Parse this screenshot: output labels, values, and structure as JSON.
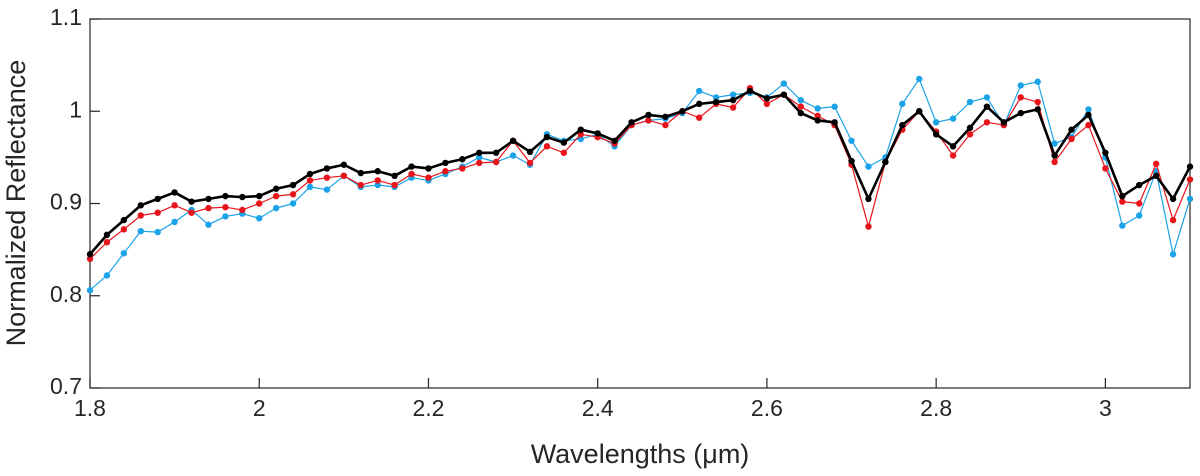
{
  "chart_data": {
    "type": "line",
    "x_label": "Wavelengths (μm)",
    "y_label": "Normalized Reflectance",
    "x": [
      1.8,
      1.82,
      1.84,
      1.86,
      1.88,
      1.9,
      1.92,
      1.94,
      1.96,
      1.98,
      2,
      2.02,
      2.04,
      2.06,
      2.08,
      2.1,
      2.12,
      2.14,
      2.16,
      2.18,
      2.2,
      2.22,
      2.24,
      2.26,
      2.28,
      2.3,
      2.32,
      2.34,
      2.36,
      2.38,
      2.4,
      2.42,
      2.44,
      2.46,
      2.48,
      2.5,
      2.52,
      2.54,
      2.56,
      2.58,
      2.6,
      2.62,
      2.64,
      2.66,
      2.68,
      2.7,
      2.72,
      2.74,
      2.76,
      2.78,
      2.8,
      2.82,
      2.84,
      2.86,
      2.88,
      2.9,
      2.92,
      2.94,
      2.96,
      2.98,
      3,
      3.02,
      3.04,
      3.06,
      3.08,
      3.1
    ],
    "series": [
      {
        "color": "#1aa3e8",
        "values": [
          0.806,
          0.822,
          0.846,
          0.87,
          0.869,
          0.88,
          0.893,
          0.877,
          0.886,
          0.889,
          0.884,
          0.895,
          0.9,
          0.918,
          0.915,
          0.93,
          0.918,
          0.92,
          0.918,
          0.928,
          0.925,
          0.932,
          0.94,
          0.95,
          0.945,
          0.952,
          0.942,
          0.975,
          0.968,
          0.97,
          0.975,
          0.962,
          0.985,
          0.99,
          0.992,
          0.998,
          1.022,
          1.015,
          1.018,
          1.02,
          1.015,
          1.03,
          1.012,
          1.003,
          1.005,
          0.968,
          0.94,
          0.95,
          1.008,
          1.035,
          0.988,
          0.992,
          1.01,
          1.015,
          0.985,
          1.028,
          1.032,
          0.965,
          0.972,
          1.002,
          0.95,
          0.876,
          0.887,
          0.935,
          0.845,
          0.905
        ]
      },
      {
        "color": "#e8141b",
        "values": [
          0.84,
          0.858,
          0.872,
          0.887,
          0.89,
          0.898,
          0.89,
          0.895,
          0.896,
          0.893,
          0.9,
          0.908,
          0.91,
          0.925,
          0.928,
          0.93,
          0.92,
          0.925,
          0.92,
          0.932,
          0.928,
          0.935,
          0.938,
          0.944,
          0.945,
          0.968,
          0.944,
          0.962,
          0.955,
          0.975,
          0.972,
          0.965,
          0.985,
          0.99,
          0.985,
          1.0,
          0.993,
          1.008,
          1.004,
          1.025,
          1.008,
          1.018,
          1.005,
          0.995,
          0.985,
          0.942,
          0.875,
          0.945,
          0.98,
          1.0,
          0.978,
          0.952,
          0.975,
          0.988,
          0.985,
          1.015,
          1.01,
          0.945,
          0.97,
          0.985,
          0.938,
          0.902,
          0.9,
          0.943,
          0.882,
          0.926
        ]
      },
      {
        "color": "#000000",
        "values": [
          0.845,
          0.866,
          0.882,
          0.898,
          0.905,
          0.912,
          0.902,
          0.905,
          0.908,
          0.907,
          0.908,
          0.916,
          0.92,
          0.932,
          0.938,
          0.942,
          0.933,
          0.935,
          0.93,
          0.94,
          0.938,
          0.944,
          0.948,
          0.955,
          0.955,
          0.968,
          0.956,
          0.972,
          0.966,
          0.98,
          0.976,
          0.968,
          0.988,
          0.996,
          0.994,
          1.0,
          1.008,
          1.01,
          1.012,
          1.022,
          1.014,
          1.018,
          0.998,
          0.99,
          0.988,
          0.946,
          0.905,
          0.945,
          0.985,
          1.0,
          0.975,
          0.962,
          0.982,
          1.005,
          0.988,
          0.998,
          1.002,
          0.952,
          0.98,
          0.996,
          0.955,
          0.908,
          0.92,
          0.93,
          0.905,
          0.94
        ]
      }
    ],
    "xlim": [
      1.8,
      3.1
    ],
    "xticks": [
      1.8,
      2,
      2.2,
      2.4,
      2.6,
      2.8,
      3
    ],
    "ylim": [
      0.7,
      1.1
    ],
    "yticks": [
      0.7,
      0.8,
      0.9,
      1,
      1.1
    ]
  }
}
